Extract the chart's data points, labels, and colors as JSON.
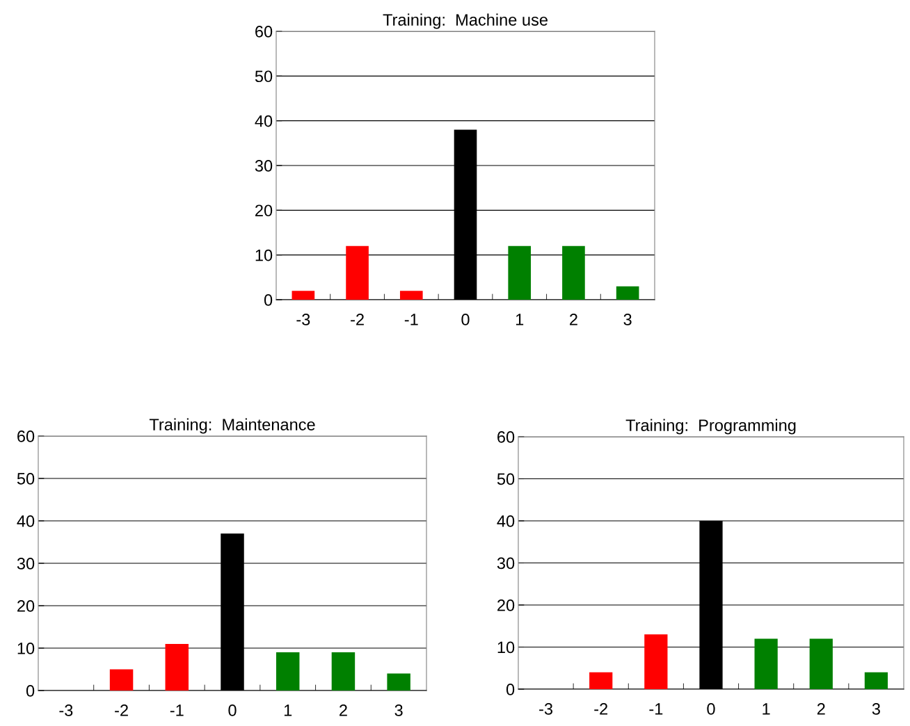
{
  "chart_data": [
    {
      "type": "bar",
      "title": "Training:  Machine use",
      "categories": [
        "-3",
        "-2",
        "-1",
        "0",
        "1",
        "2",
        "3"
      ],
      "values": [
        2,
        12,
        2,
        38,
        12,
        12,
        3
      ],
      "colors": [
        "#ff0000",
        "#ff0000",
        "#ff0000",
        "#000000",
        "#008000",
        "#008000",
        "#008000"
      ],
      "ylim": [
        0,
        60
      ],
      "yticks": [
        0,
        10,
        20,
        30,
        40,
        50,
        60
      ],
      "grid": "y"
    },
    {
      "type": "bar",
      "title": "Training:  Maintenance",
      "categories": [
        "-3",
        "-2",
        "-1",
        "0",
        "1",
        "2",
        "3"
      ],
      "values": [
        0,
        5,
        11,
        37,
        9,
        9,
        4
      ],
      "colors": [
        "#ff0000",
        "#ff0000",
        "#ff0000",
        "#000000",
        "#008000",
        "#008000",
        "#008000"
      ],
      "ylim": [
        0,
        60
      ],
      "yticks": [
        0,
        10,
        20,
        30,
        40,
        50,
        60
      ],
      "grid": "y"
    },
    {
      "type": "bar",
      "title": "Training:  Programming",
      "categories": [
        "-3",
        "-2",
        "-1",
        "0",
        "1",
        "2",
        "3"
      ],
      "values": [
        0,
        4,
        13,
        40,
        12,
        12,
        4
      ],
      "colors": [
        "#ff0000",
        "#ff0000",
        "#ff0000",
        "#000000",
        "#008000",
        "#008000",
        "#008000"
      ],
      "ylim": [
        0,
        60
      ],
      "yticks": [
        0,
        10,
        20,
        30,
        40,
        50,
        60
      ],
      "grid": "y"
    }
  ]
}
